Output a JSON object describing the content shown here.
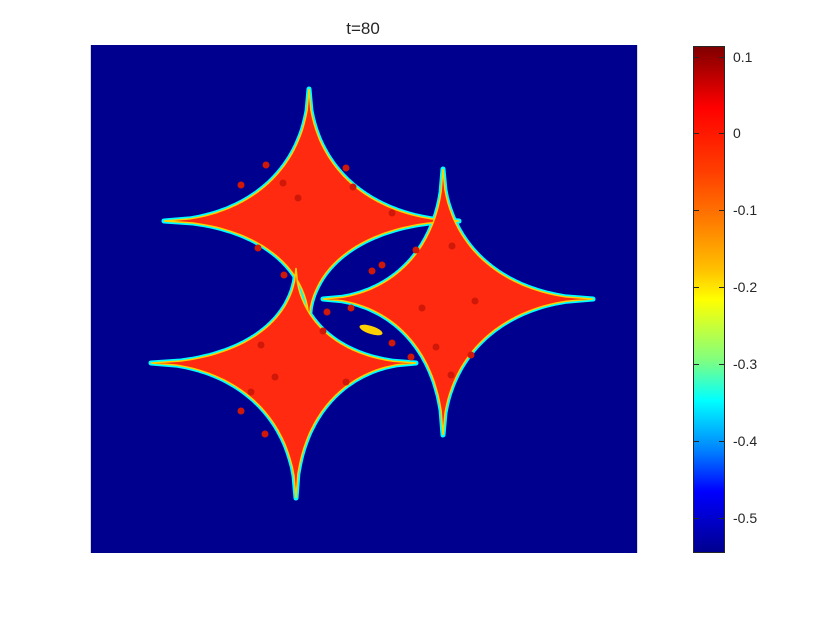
{
  "chart_data": {
    "type": "heatmap",
    "title": "t=80",
    "xlabel": "",
    "ylabel": "",
    "colormap": "jet",
    "colorbar": {
      "range": [
        -0.55,
        0.12
      ],
      "tick_labels": [
        "0.1",
        "0",
        "-0.1",
        "-0.2",
        "-0.3",
        "-0.4",
        "-0.5"
      ],
      "ticks": [
        0.1,
        0,
        -0.1,
        -0.2,
        -0.3,
        -0.4,
        -0.5
      ]
    },
    "field": {
      "background_value": -0.54,
      "crystal_value": 0.0,
      "description_colors": {
        "background": "#00008f",
        "crystal": "#ff2a10",
        "edge": "#00ffff"
      }
    },
    "grid": false,
    "legend": "none"
  }
}
